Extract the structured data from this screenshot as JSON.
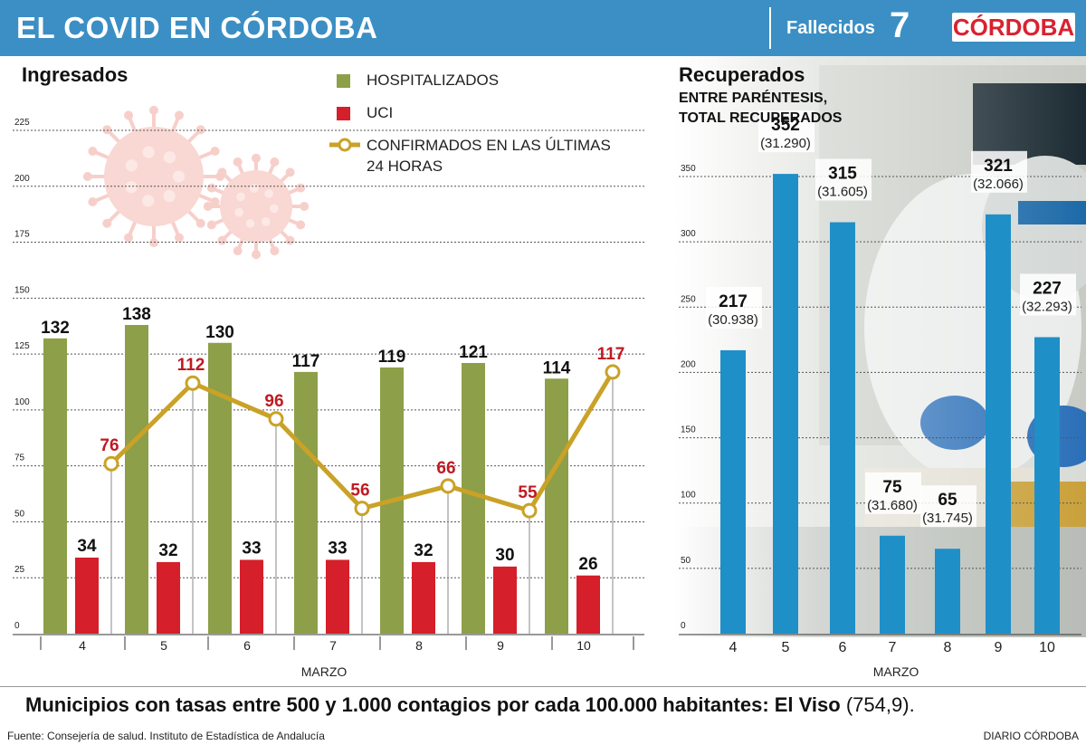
{
  "header": {
    "title": "EL COVID EN CÓRDOBA",
    "fallecidos_label": "Fallecidos",
    "fallecidos_value": "7",
    "logo": "CÓRDOBA",
    "bg_color": "#3b8fc4"
  },
  "left": {
    "title": "Ingresados",
    "legend": {
      "hosp": "HOSPITALIZADOS",
      "uci": "UCI",
      "conf_line1": "CONFIRMADOS EN LAS ÚLTIMAS",
      "conf_line2": "24 HORAS"
    },
    "xaxis_label": "MARZO"
  },
  "right": {
    "title": "Recuperados",
    "sub1": "ENTRE PARÉNTESIS,",
    "sub2": "TOTAL RECUPERADOS",
    "xaxis_label": "MARZO"
  },
  "footer": {
    "municipios": "Municipios con tasas entre 500 y 1.000 contagios por cada 100.000 habitantes: El Viso",
    "municipios_value": "(754,9).",
    "fuente": "Fuente: Consejería de salud. Instituto de Estadística de Andalucía",
    "diario": "DIARIO CÓRDOBA"
  },
  "colors": {
    "hosp": "#8d9f48",
    "uci": "#d51f2a",
    "conf": "#c9a227",
    "recup": "#1f8fc8",
    "uci_label": "#c01a22"
  },
  "chart_data": [
    {
      "type": "bar",
      "title": "Ingresados",
      "categories": [
        "4",
        "5",
        "6",
        "7",
        "8",
        "9",
        "10"
      ],
      "xlabel": "MARZO",
      "ylim": [
        0,
        225
      ],
      "yticks": [
        0,
        25,
        50,
        75,
        100,
        125,
        150,
        175,
        200,
        225
      ],
      "series": [
        {
          "name": "HOSPITALIZADOS",
          "values": [
            132,
            138,
            130,
            117,
            119,
            121,
            114
          ]
        },
        {
          "name": "UCI",
          "values": [
            34,
            32,
            33,
            33,
            32,
            30,
            26
          ]
        },
        {
          "name": "CONFIRMADOS EN LAS ÚLTIMAS 24 HORAS",
          "type": "line",
          "values": [
            76,
            112,
            96,
            56,
            66,
            55,
            117
          ]
        }
      ]
    },
    {
      "type": "bar",
      "title": "Recuperados",
      "subtitle": "ENTRE PARÉNTESIS, TOTAL RECUPERADOS",
      "categories": [
        "4",
        "5",
        "6",
        "7",
        "8",
        "9",
        "10"
      ],
      "xlabel": "MARZO",
      "ylim": [
        0,
        350
      ],
      "yticks": [
        0,
        50,
        100,
        150,
        200,
        250,
        300,
        350
      ],
      "values": [
        217,
        352,
        315,
        75,
        65,
        321,
        227
      ],
      "totals": [
        "(30.938)",
        "(31.290)",
        "(31.605)",
        "(31.680)",
        "(31.745)",
        "(32.066)",
        "(32.293)"
      ]
    }
  ]
}
